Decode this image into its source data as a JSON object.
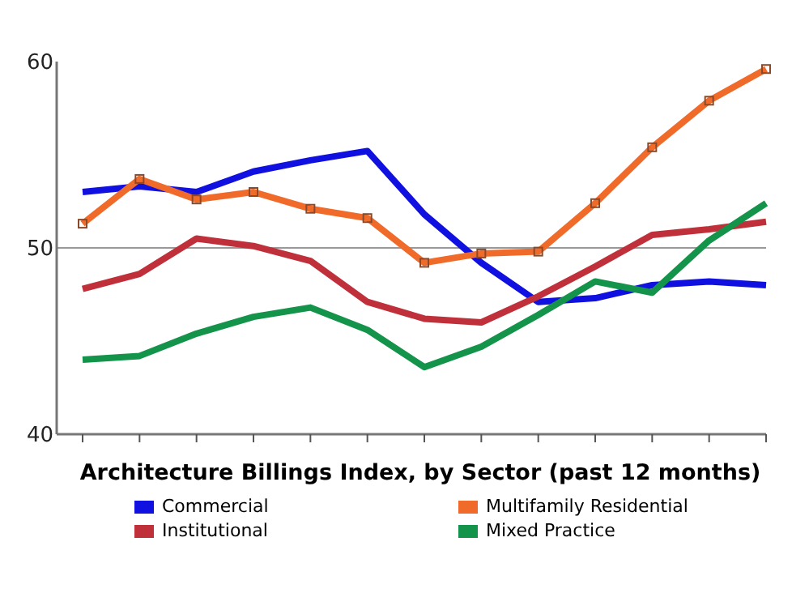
{
  "chart_data": {
    "type": "line",
    "title": "Architecture Billings Index, by Sector (past 12 months)",
    "categories": [
      null,
      null,
      null,
      null,
      null,
      null,
      null,
      null,
      null,
      null,
      null,
      null,
      null
    ],
    "series": [
      {
        "name": "Commercial",
        "color": "#1010e0",
        "values": [
          53.0,
          53.3,
          53.0,
          54.1,
          54.7,
          55.2,
          51.8,
          49.2,
          47.1,
          47.3,
          48.0,
          48.2,
          48.0
        ]
      },
      {
        "name": "Multifamily Residential",
        "color": "#f06a2a",
        "marker": "square",
        "values": [
          51.3,
          53.7,
          52.6,
          53.0,
          52.1,
          51.6,
          49.2,
          49.7,
          49.8,
          52.4,
          55.4,
          57.9,
          59.6
        ]
      },
      {
        "name": "Institutional",
        "color": "#c0303a",
        "values": [
          47.8,
          48.6,
          50.5,
          50.1,
          49.3,
          47.1,
          46.2,
          46.0,
          47.4,
          49.0,
          50.7,
          51.0,
          51.4
        ]
      },
      {
        "name": "Mixed Practice",
        "color": "#14934a",
        "values": [
          44.0,
          44.2,
          45.4,
          46.3,
          46.8,
          45.6,
          43.6,
          44.7,
          46.4,
          48.2,
          47.6,
          50.4,
          52.4
        ]
      }
    ],
    "ylim": [
      40,
      60
    ],
    "yticks": [
      40,
      50,
      60
    ],
    "ref_lines": [
      {
        "axis": "y",
        "value": 50,
        "color": "#999999"
      }
    ],
    "legend": "bottom",
    "marker": "none",
    "line_style": "solid"
  }
}
